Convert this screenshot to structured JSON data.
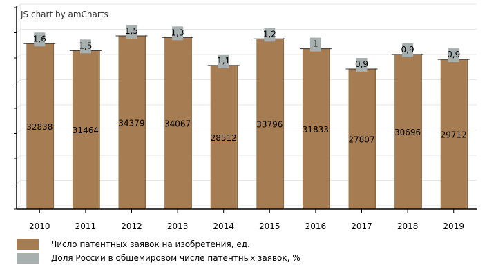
{
  "credit_text": "JS chart by amCharts",
  "chart_data": {
    "type": "bar",
    "categories": [
      "2010",
      "2011",
      "2012",
      "2013",
      "2014",
      "2015",
      "2016",
      "2017",
      "2018",
      "2019"
    ],
    "series": [
      {
        "name": "Число патентных заявок на изобретения, ед.",
        "color": "#a67c52",
        "values": [
          32838,
          31464,
          34379,
          34067,
          28512,
          33796,
          31833,
          27807,
          30696,
          29712
        ],
        "labels": [
          "32838",
          "31464",
          "34379",
          "34067",
          "28512",
          "33796",
          "31833",
          "27807",
          "30696",
          "29712"
        ]
      },
      {
        "name": "Доля России в общемировом числе патентных заявок, %",
        "color": "#a7b0ae",
        "values": [
          1.6,
          1.5,
          1.5,
          1.3,
          1.1,
          1.2,
          1.0,
          0.9,
          0.9,
          0.9
        ],
        "labels": [
          "1,6",
          "1,5",
          "1,5",
          "1,3",
          "1,1",
          "1,2",
          "1",
          "0,9",
          "0,9",
          "0,9"
        ]
      }
    ],
    "ylim": [
      0,
      40000
    ],
    "grid": true,
    "legend_position": "bottom"
  }
}
